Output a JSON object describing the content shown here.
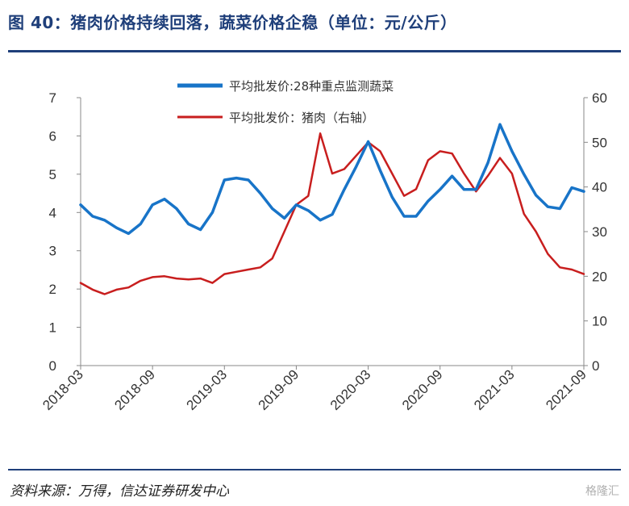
{
  "header": {
    "title": "图 40：猪肉价格持续回落，蔬菜价格企稳（单位：元/公斤）"
  },
  "footer": {
    "source": "资料来源：万得，信达证券研发中心",
    "watermark": "格隆汇"
  },
  "chart_data": {
    "type": "line",
    "x_tick_labels": [
      "2018-03",
      "2018-09",
      "2019-03",
      "2019-09",
      "2020-03",
      "2020-09",
      "2021-03",
      "2021-09"
    ],
    "y_left": {
      "min": 0,
      "max": 7,
      "ticks": [
        "0",
        "1",
        "2",
        "3",
        "4",
        "5",
        "6",
        "7"
      ]
    },
    "y_right": {
      "min": 0,
      "max": 60,
      "ticks": [
        "0",
        "10",
        "20",
        "30",
        "40",
        "50",
        "60"
      ]
    },
    "grid": false,
    "legend_position": "top",
    "series": [
      {
        "name": "平均批发价:28种重点监测蔬菜",
        "axis": "left",
        "color": "#1874c8",
        "points": [
          [
            "2018-03",
            4.2
          ],
          [
            "2018-04",
            3.9
          ],
          [
            "2018-05",
            3.8
          ],
          [
            "2018-06",
            3.6
          ],
          [
            "2018-07",
            3.45
          ],
          [
            "2018-08",
            3.7
          ],
          [
            "2018-09",
            4.2
          ],
          [
            "2018-10",
            4.35
          ],
          [
            "2018-11",
            4.1
          ],
          [
            "2018-12",
            3.7
          ],
          [
            "2019-01",
            3.55
          ],
          [
            "2019-02",
            4.0
          ],
          [
            "2019-03",
            4.85
          ],
          [
            "2019-04",
            4.9
          ],
          [
            "2019-05",
            4.85
          ],
          [
            "2019-06",
            4.5
          ],
          [
            "2019-07",
            4.1
          ],
          [
            "2019-08",
            3.85
          ],
          [
            "2019-09",
            4.2
          ],
          [
            "2019-10",
            4.05
          ],
          [
            "2019-11",
            3.8
          ],
          [
            "2019-12",
            3.95
          ],
          [
            "2020-01",
            4.6
          ],
          [
            "2020-02",
            5.2
          ],
          [
            "2020-03",
            5.85
          ],
          [
            "2020-04",
            5.1
          ],
          [
            "2020-05",
            4.4
          ],
          [
            "2020-06",
            3.9
          ],
          [
            "2020-07",
            3.9
          ],
          [
            "2020-08",
            4.3
          ],
          [
            "2020-09",
            4.6
          ],
          [
            "2020-10",
            4.95
          ],
          [
            "2020-11",
            4.6
          ],
          [
            "2020-12",
            4.6
          ],
          [
            "2021-01",
            5.3
          ],
          [
            "2021-02",
            6.3
          ],
          [
            "2021-03",
            5.6
          ],
          [
            "2021-04",
            5.0
          ],
          [
            "2021-05",
            4.45
          ],
          [
            "2021-06",
            4.15
          ],
          [
            "2021-07",
            4.1
          ],
          [
            "2021-08",
            4.65
          ],
          [
            "2021-09",
            4.55
          ]
        ]
      },
      {
        "name": "平均批发价：猪肉（右轴）",
        "axis": "right",
        "color": "#c81e1e",
        "points": [
          [
            "2018-03",
            18.5
          ],
          [
            "2018-04",
            17.0
          ],
          [
            "2018-05",
            16.0
          ],
          [
            "2018-06",
            17.0
          ],
          [
            "2018-07",
            17.5
          ],
          [
            "2018-08",
            19.0
          ],
          [
            "2018-09",
            19.8
          ],
          [
            "2018-10",
            20.0
          ],
          [
            "2018-11",
            19.5
          ],
          [
            "2018-12",
            19.3
          ],
          [
            "2019-01",
            19.5
          ],
          [
            "2019-02",
            18.5
          ],
          [
            "2019-03",
            20.5
          ],
          [
            "2019-04",
            21.0
          ],
          [
            "2019-05",
            21.5
          ],
          [
            "2019-06",
            22.0
          ],
          [
            "2019-07",
            24.0
          ],
          [
            "2019-08",
            30.0
          ],
          [
            "2019-09",
            36.0
          ],
          [
            "2019-10",
            38.0
          ],
          [
            "2019-11",
            52.0
          ],
          [
            "2019-12",
            43.0
          ],
          [
            "2020-01",
            44.0
          ],
          [
            "2020-02",
            47.0
          ],
          [
            "2020-03",
            50.0
          ],
          [
            "2020-04",
            48.0
          ],
          [
            "2020-05",
            43.0
          ],
          [
            "2020-06",
            38.0
          ],
          [
            "2020-07",
            39.5
          ],
          [
            "2020-08",
            46.0
          ],
          [
            "2020-09",
            48.0
          ],
          [
            "2020-10",
            47.5
          ],
          [
            "2020-11",
            43.0
          ],
          [
            "2020-12",
            39.0
          ],
          [
            "2021-01",
            42.5
          ],
          [
            "2021-02",
            46.5
          ],
          [
            "2021-03",
            43.0
          ],
          [
            "2021-04",
            34.0
          ],
          [
            "2021-05",
            30.0
          ],
          [
            "2021-06",
            25.0
          ],
          [
            "2021-07",
            22.0
          ],
          [
            "2021-08",
            21.5
          ],
          [
            "2021-09",
            20.5
          ]
        ]
      }
    ]
  }
}
